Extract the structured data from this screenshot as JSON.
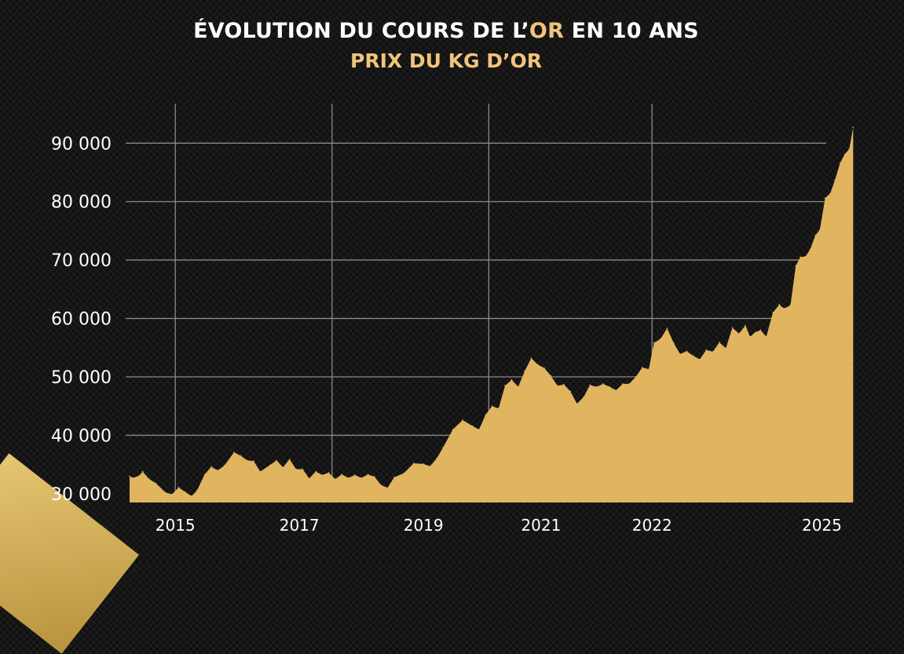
{
  "title_prefix": "ÉVOLUTION DU COURS DE L’",
  "title_highlight": "OR",
  "title_suffix": " EN 10 ANS",
  "subtitle": "PRIX DU KG D’OR",
  "colors": {
    "gold": "#e1b45f",
    "title_highlight": "#f1c47c",
    "grid": "#8a8a8a"
  },
  "chart_data": {
    "type": "area",
    "title": "ÉVOLUTION DU COURS DE L’OR EN 10 ANS",
    "subtitle": "PRIX DU KG D’OR",
    "xlim": [
      2014.3,
      2025.4
    ],
    "ylim": [
      28500,
      93000
    ],
    "y_ticks": [
      30000,
      40000,
      50000,
      60000,
      70000,
      80000,
      90000
    ],
    "y_tick_labels": [
      "30 000",
      "40 000",
      "50 000",
      "60 000",
      "70 000",
      "80 000",
      "90 000"
    ],
    "x_tick_labels": [
      {
        "label": "2015",
        "at": 2015.0
      },
      {
        "label": "2017",
        "at": 2016.9
      },
      {
        "label": "2019",
        "at": 2018.8
      },
      {
        "label": "2021",
        "at": 2020.6
      },
      {
        "label": "2022",
        "at": 2022.3
      },
      {
        "label": "2025",
        "at": 2024.9
      }
    ],
    "vertical_grid_at": [
      2015.0,
      2017.4,
      2019.8,
      2022.3
    ],
    "grid": true,
    "x": [
      2014.3,
      2014.35,
      2014.45,
      2014.5,
      2014.6,
      2014.7,
      2014.85,
      2014.95,
      2015.05,
      2015.15,
      2015.25,
      2015.33,
      2015.45,
      2015.55,
      2015.65,
      2015.75,
      2015.9,
      2016.0,
      2016.1,
      2016.2,
      2016.3,
      2016.45,
      2016.55,
      2016.65,
      2016.75,
      2016.85,
      2016.95,
      2017.05,
      2017.15,
      2017.25,
      2017.35,
      2017.45,
      2017.55,
      2017.65,
      2017.75,
      2017.85,
      2017.95,
      2018.05,
      2018.15,
      2018.25,
      2018.35,
      2018.5,
      2018.65,
      2018.8,
      2018.9,
      2019.0,
      2019.1,
      2019.25,
      2019.4,
      2019.55,
      2019.65,
      2019.75,
      2019.85,
      2019.95,
      2020.05,
      2020.15,
      2020.25,
      2020.35,
      2020.45,
      2020.55,
      2020.65,
      2020.75,
      2020.85,
      2020.95,
      2021.05,
      2021.15,
      2021.25,
      2021.35,
      2021.45,
      2021.55,
      2021.65,
      2021.75,
      2021.85,
      2021.95,
      2022.05,
      2022.15,
      2022.25,
      2022.33,
      2022.43,
      2022.53,
      2022.63,
      2022.73,
      2022.83,
      2022.93,
      2023.03,
      2023.13,
      2023.23,
      2023.33,
      2023.43,
      2023.53,
      2023.63,
      2023.73,
      2023.8,
      2023.88,
      2023.96,
      2024.05,
      2024.15,
      2024.25,
      2024.3,
      2024.35,
      2024.42,
      2024.5,
      2024.57,
      2024.65,
      2024.72,
      2024.8,
      2024.87,
      2024.95,
      2025.03,
      2025.1,
      2025.18,
      2025.25,
      2025.32,
      2025.38
    ],
    "values": [
      33000,
      32700,
      33100,
      33800,
      32500,
      31800,
      30200,
      29900,
      31100,
      30300,
      29600,
      30500,
      33300,
      34600,
      34000,
      34800,
      37100,
      36500,
      35700,
      35600,
      33800,
      34900,
      35700,
      34500,
      35900,
      34200,
      34200,
      32600,
      33800,
      33200,
      33600,
      32500,
      33300,
      32700,
      33200,
      32700,
      33300,
      32900,
      31500,
      31000,
      32800,
      33500,
      35200,
      35100,
      34700,
      36000,
      37900,
      41000,
      42600,
      41600,
      41000,
      43500,
      45000,
      44600,
      48500,
      49500,
      48300,
      51000,
      53200,
      52100,
      51500,
      50200,
      48500,
      48700,
      47500,
      45400,
      46500,
      48600,
      48300,
      48800,
      48300,
      47700,
      48800,
      48800,
      50000,
      51600,
      51300,
      55800,
      56500,
      58300,
      55800,
      53900,
      54400,
      53600,
      53000,
      54600,
      54300,
      55900,
      54900,
      58400,
      57400,
      58800,
      56900,
      57600,
      58000,
      56900,
      61000,
      62400,
      61800,
      61800,
      62300,
      69000,
      70500,
      70600,
      71800,
      74200,
      75200,
      80600,
      81400,
      83700,
      86600,
      88100,
      89000,
      92700
    ]
  }
}
